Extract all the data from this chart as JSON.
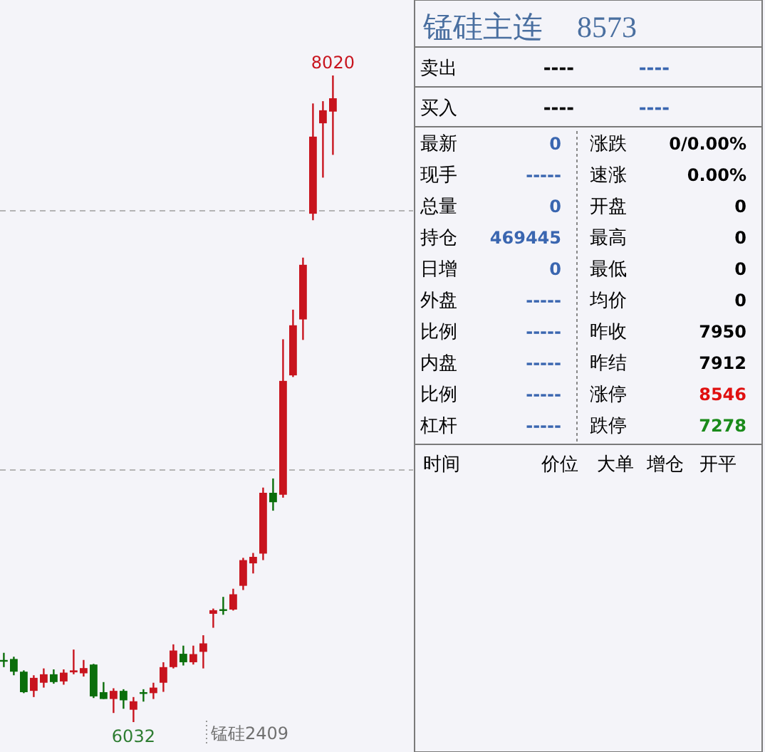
{
  "chart_data": [
    {
      "type": "candlestick",
      "categories": [
        null,
        null,
        null,
        null,
        null,
        null,
        null,
        null,
        null,
        null,
        null,
        null,
        null,
        null,
        null,
        null,
        null,
        null,
        null,
        null,
        null,
        null,
        null,
        null,
        null,
        null,
        null,
        null,
        null,
        null,
        null,
        null,
        null,
        null
      ],
      "ohlc": [
        [
          6223,
          6245,
          6201,
          6223
        ],
        [
          6226,
          6233,
          6176,
          6187
        ],
        [
          6187,
          6191,
          6121,
          6124
        ],
        [
          6128,
          6176,
          6109,
          6168
        ],
        [
          6153,
          6197,
          6138,
          6179
        ],
        [
          6179,
          6194,
          6150,
          6155
        ],
        [
          6157,
          6194,
          6147,
          6184
        ],
        [
          6185,
          6255,
          6179,
          6191
        ],
        [
          6182,
          6223,
          6172,
          6198
        ],
        [
          6209,
          6211,
          6106,
          6111
        ],
        [
          6124,
          6155,
          6103,
          6103
        ],
        [
          6103,
          6136,
          6060,
          6128
        ],
        [
          6128,
          6133,
          6073,
          6099
        ],
        [
          6070,
          6109,
          6032,
          6096
        ],
        [
          6124,
          6133,
          6095,
          6124
        ],
        [
          6121,
          6153,
          6103,
          6138
        ],
        [
          6153,
          6216,
          6125,
          6201
        ],
        [
          6201,
          6271,
          6197,
          6252
        ],
        [
          6242,
          6267,
          6206,
          6216
        ],
        [
          6216,
          6267,
          6209,
          6241
        ],
        [
          6248,
          6299,
          6197,
          6274
        ],
        [
          6365,
          6381,
          6322,
          6376
        ],
        [
          6379,
          6417,
          6362,
          6379
        ],
        [
          6378,
          6442,
          6375,
          6425
        ],
        [
          6451,
          6537,
          6438,
          6530
        ],
        [
          6520,
          6552,
          6489,
          6540
        ],
        [
          6550,
          6753,
          6530,
          6737
        ],
        [
          6737,
          6781,
          6682,
          6708
        ],
        [
          6731,
          7209,
          6722,
          7081
        ],
        [
          7098,
          7300,
          7093,
          7252
        ],
        [
          7270,
          7460,
          7207,
          7438
        ],
        [
          7595,
          7934,
          7575,
          7832
        ],
        [
          7873,
          7941,
          7706,
          7913
        ],
        [
          7909,
          8020,
          7776,
          7950
        ]
      ],
      "yticks": [
        {
          "value": 7604,
          "label": null
        },
        {
          "value": 6807,
          "label": null
        }
      ],
      "grid": "y",
      "annotations": [
        {
          "text": "8020",
          "y": 8020
        },
        {
          "text": "6032",
          "y": 6032
        },
        "锰硅2409"
      ]
    },
    {
      "type": "other",
      "title": "锰硅主连",
      "subtitle": "8573",
      "annotations": [
        "卖出",
        "----",
        "----",
        "买入",
        "----",
        "----",
        "最新",
        "0",
        "涨跌",
        "0/0.00%",
        "现手",
        "-----",
        "速涨",
        "0.00%",
        "总量",
        "0",
        "开盘",
        "0",
        "持仓",
        "469445",
        "最高",
        "0",
        "日增",
        "0",
        "最低",
        "0",
        "外盘",
        "-----",
        "均价",
        "0",
        "比例",
        "-----",
        "昨收",
        "7950",
        "内盘",
        "-----",
        "昨结",
        "7912",
        "比例",
        "-----",
        "涨停",
        "8546",
        "杠杆",
        "-----",
        "跌停",
        "7278",
        "时间",
        "价位",
        "大单",
        "增仓",
        "开平"
      ]
    }
  ]
}
